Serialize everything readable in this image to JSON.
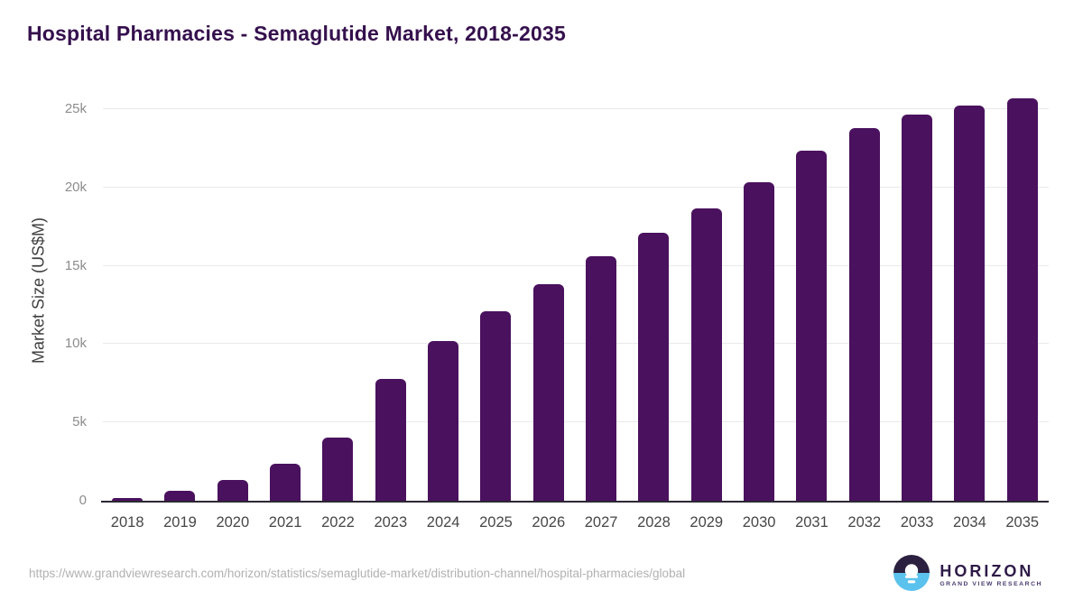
{
  "chart_data": {
    "type": "bar",
    "title": "Hospital Pharmacies - Semaglutide Market, 2018-2035",
    "xlabel": "",
    "ylabel": "Market Size (US$M)",
    "categories": [
      "2018",
      "2019",
      "2020",
      "2021",
      "2022",
      "2023",
      "2024",
      "2025",
      "2026",
      "2027",
      "2028",
      "2029",
      "2030",
      "2031",
      "2032",
      "2033",
      "2034",
      "2035"
    ],
    "values": [
      150,
      620,
      1330,
      2360,
      4050,
      7770,
      10200,
      12100,
      13850,
      15600,
      17100,
      18650,
      20350,
      22350,
      23800,
      24650,
      25230,
      25690
    ],
    "ylim": [
      0,
      26100
    ],
    "yticks": [
      {
        "value": 0,
        "label": "0"
      },
      {
        "value": 5000,
        "label": "5k"
      },
      {
        "value": 10000,
        "label": "10k"
      },
      {
        "value": 15000,
        "label": "15k"
      },
      {
        "value": 20000,
        "label": "20k"
      },
      {
        "value": 25000,
        "label": "25k"
      }
    ],
    "grid": true,
    "legend": false,
    "bar_color": "#4a115e"
  },
  "colors": {
    "title": "#35104d",
    "bar": "#4a115e",
    "axis_line": "#2c2733",
    "grid_line": "#e9e9ec",
    "y_tick_label": "#8c8c8c",
    "x_tick_label": "#474747",
    "url_text": "#b1b1b1",
    "logo_dark": "#2b2040",
    "logo_blue": "#5bc2ee"
  },
  "footer": {
    "source_url": "https://www.grandviewresearch.com/horizon/statistics/semaglutide-market/distribution-channel/hospital-pharmacies/global",
    "logo_title": "HORIZON",
    "logo_subtitle": "GRAND VIEW RESEARCH"
  }
}
